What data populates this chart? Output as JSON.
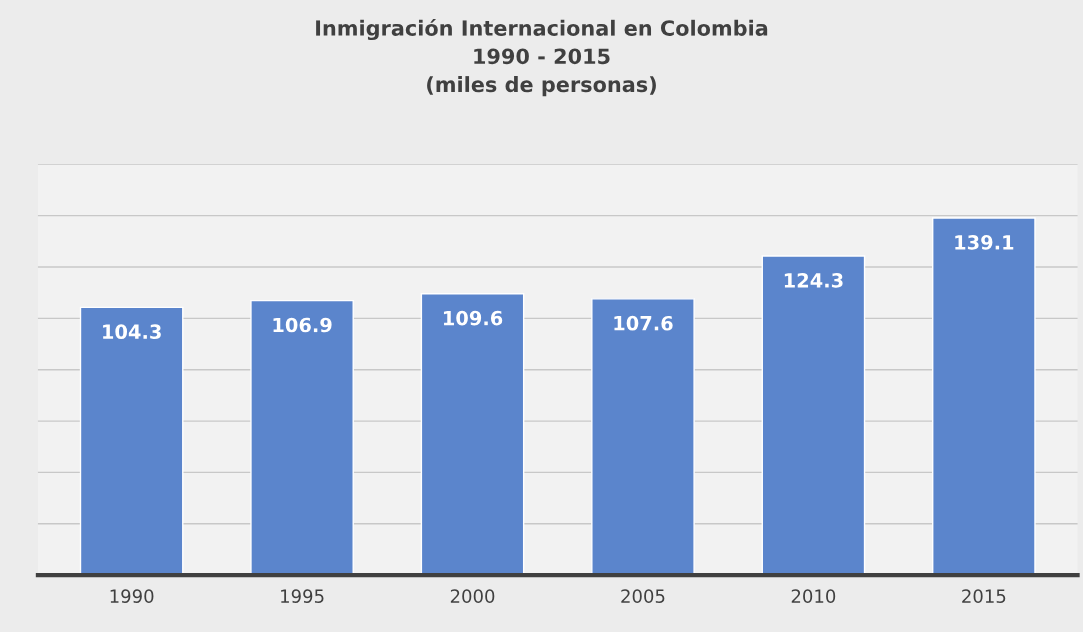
{
  "chart_data": {
    "type": "bar",
    "title": "Inmigración Internacional en Colombia\n1990 - 2015\n(miles de personas)",
    "categories": [
      "1990",
      "1995",
      "2000",
      "2005",
      "2010",
      "2015"
    ],
    "values": [
      104.3,
      106.9,
      109.6,
      107.6,
      124.3,
      139.1
    ],
    "color": "#5b85cc",
    "ylim": [
      0,
      160
    ],
    "yticks": [
      {
        "value": 0,
        "label": null
      },
      {
        "value": 20,
        "label": null
      },
      {
        "value": 40,
        "label": null
      },
      {
        "value": 60,
        "label": null
      },
      {
        "value": 80,
        "label": null
      },
      {
        "value": 100,
        "label": null
      },
      {
        "value": 120,
        "label": null
      },
      {
        "value": 140,
        "label": null
      },
      {
        "value": 160,
        "label": null
      }
    ],
    "tick_labels": "x",
    "grid": "y",
    "data_labels": true
  }
}
